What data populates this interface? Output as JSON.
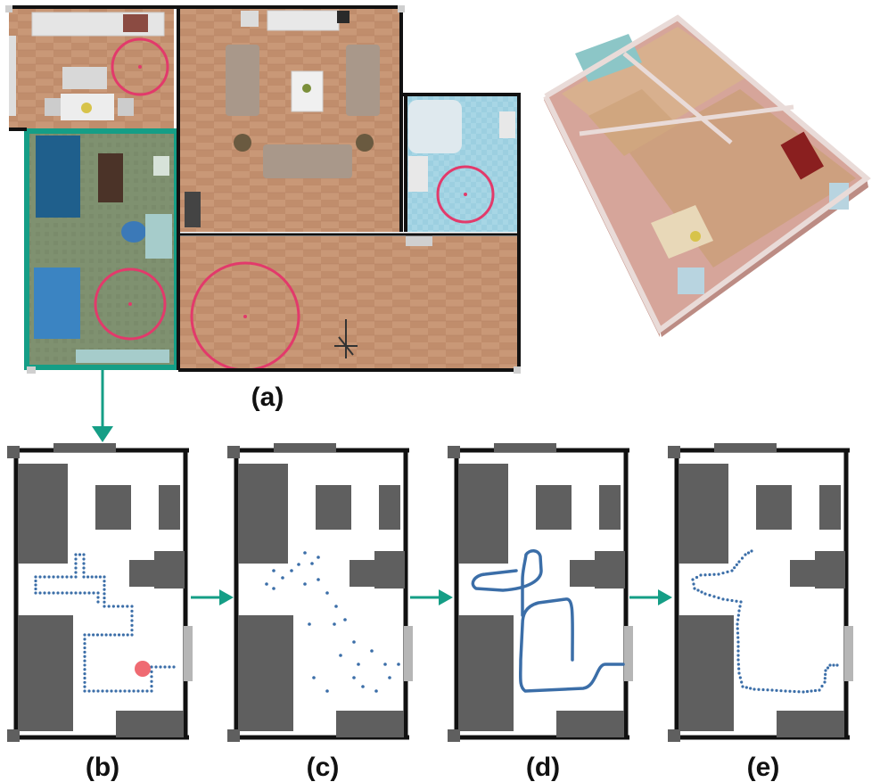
{
  "labels": {
    "a": "(a)",
    "b": "(b)",
    "c": "(c)",
    "d": "(d)",
    "e": "(e)"
  },
  "colors": {
    "floor_wood": "#c99877",
    "floor_wood_dark": "#b88666",
    "bedroom_floor": "#7f8f6f",
    "bathroom_tile": "#a9d7e6",
    "highlight_frame": "#159e86",
    "target_circle": "#e23a6b",
    "obstacle": "#5f5f5f",
    "door_gray": "#b6b6b6",
    "trajectory": "#3b6ea8",
    "robot": "#ef6a72",
    "wall": "#111111"
  },
  "icons": [
    "arrow-right-icon",
    "arrow-down-icon",
    "robot-icon"
  ]
}
